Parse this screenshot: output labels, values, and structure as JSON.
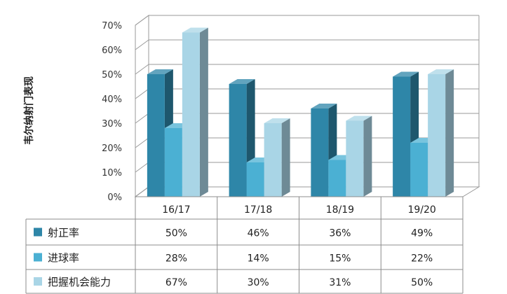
{
  "chart_data": {
    "type": "bar",
    "title": "",
    "xlabel": "",
    "ylabel": "韦尔纳射门表现",
    "categories": [
      "16/17",
      "17/18",
      "18/19",
      "19/20"
    ],
    "ylim": [
      0,
      70
    ],
    "yticks": [
      0,
      10,
      20,
      30,
      40,
      50,
      60,
      70
    ],
    "ytick_labels": [
      "0%",
      "10%",
      "20%",
      "30%",
      "40%",
      "50%",
      "60%",
      "70%"
    ],
    "grid": true,
    "legend": "data-table-left",
    "data_table": true,
    "series": [
      {
        "name": "射正率",
        "values": [
          50,
          46,
          36,
          49
        ],
        "labels": [
          "50%",
          "46%",
          "36%",
          "49%"
        ],
        "color": "#2e86a8"
      },
      {
        "name": "进球率",
        "values": [
          28,
          14,
          15,
          22
        ],
        "labels": [
          "28%",
          "14%",
          "15%",
          "22%"
        ],
        "color": "#4bb0d3"
      },
      {
        "name": "把握机会能力",
        "values": [
          67,
          30,
          31,
          50
        ],
        "labels": [
          "67%",
          "30%",
          "31%",
          "50%"
        ],
        "color": "#a9d5e6"
      }
    ]
  }
}
